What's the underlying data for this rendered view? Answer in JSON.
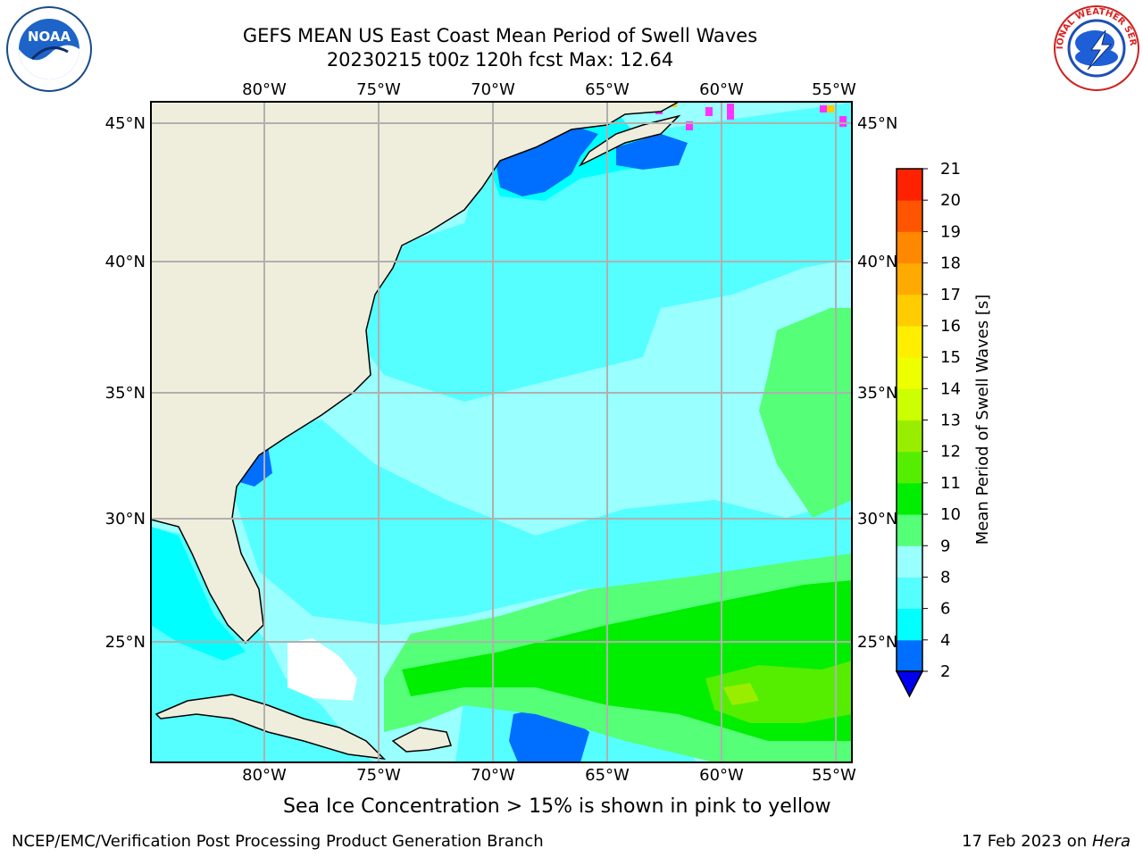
{
  "header": {
    "title_line1": "GEFS MEAN US East Coast Mean Period of Swell Waves",
    "title_line2": "20230215 t00z 120h fcst   Max: 12.64"
  },
  "logos": {
    "left": {
      "icon": "noaa-logo",
      "text": "NOAA"
    },
    "right": {
      "icon": "national-weather-service-logo",
      "text": "NATIONAL WEATHER SERVICE"
    }
  },
  "map": {
    "lon_labels": [
      "80°W",
      "75°W",
      "70°W",
      "65°W",
      "60°W",
      "55°W"
    ],
    "lat_labels": [
      "45°N",
      "40°N",
      "35°N",
      "30°N",
      "25°N"
    ],
    "land_color": "#efeedc",
    "ice_colors": [
      "#ff33ff",
      "#ffcc00"
    ]
  },
  "colorbar": {
    "label": "Mean Period of Swell Waves [s]",
    "ticks": [
      "2",
      "4",
      "6",
      "8",
      "9",
      "10",
      "11",
      "12",
      "13",
      "14",
      "15",
      "16",
      "17",
      "18",
      "19",
      "20",
      "21"
    ],
    "colors": [
      "#0000ee",
      "#006eff",
      "#00ffff",
      "#55ffff",
      "#99ffff",
      "#55ff77",
      "#00ee00",
      "#55ee00",
      "#99ee00",
      "#ccff00",
      "#eeff00",
      "#ffee00",
      "#ffcc00",
      "#ffaa00",
      "#ff8800",
      "#ff5500",
      "#ff2200",
      "#ff0000"
    ]
  },
  "caption": "Sea Ice Concentration > 15% is shown in pink to yellow",
  "footer": {
    "left": "NCEP/EMC/Verification Post Processing Product Generation Branch",
    "right_date": "17 Feb 2023 on ",
    "right_host": "Hera"
  }
}
